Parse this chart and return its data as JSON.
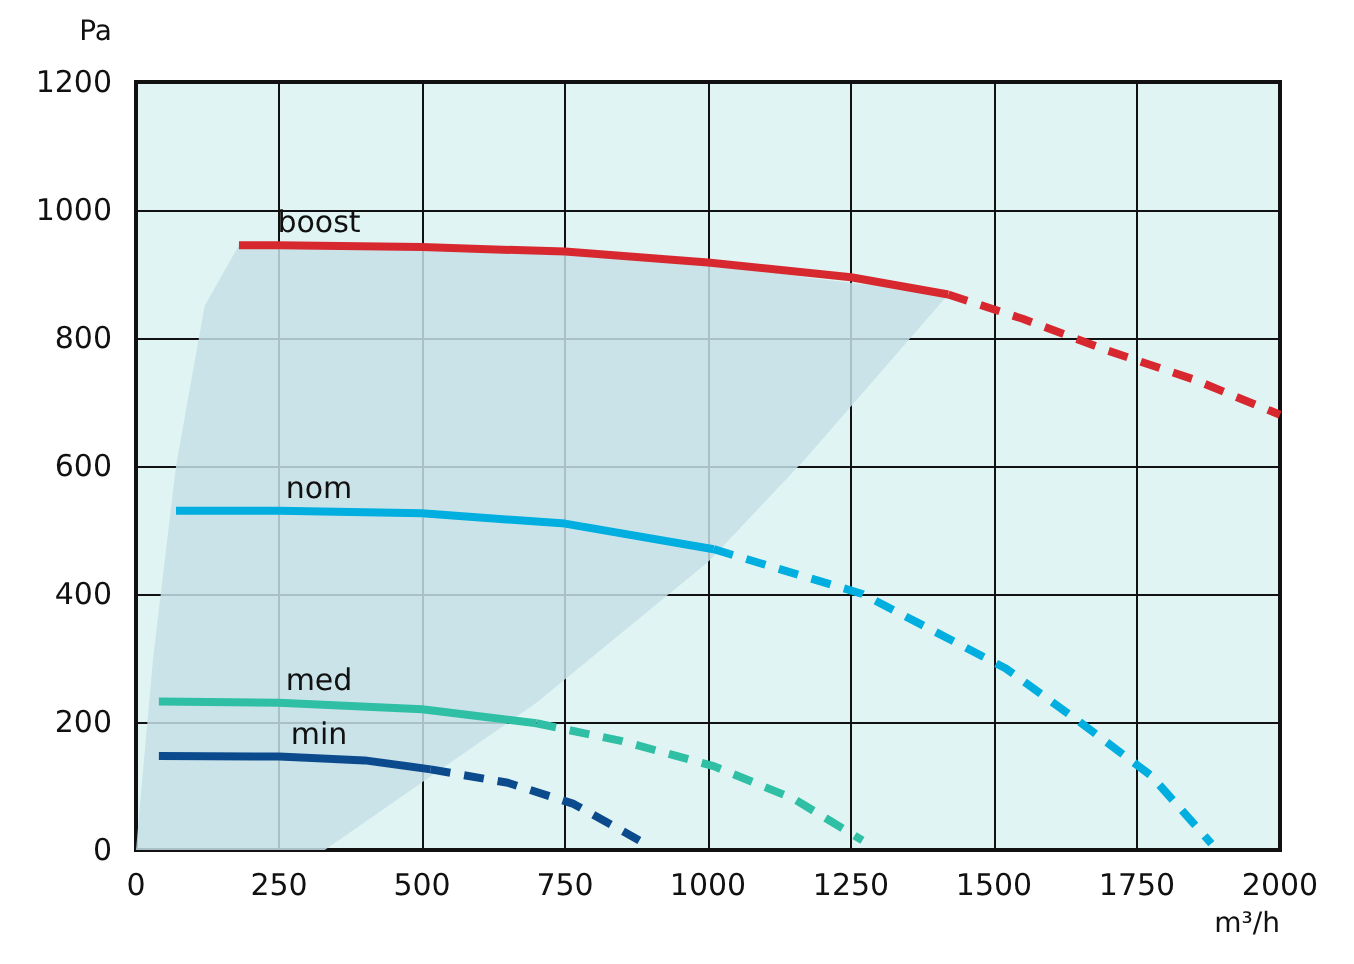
{
  "chart_data": {
    "type": "line",
    "xlabel": "m³/h",
    "ylabel": "Pa",
    "xlim": [
      0,
      2000
    ],
    "xticks": [
      0,
      250,
      500,
      750,
      1000,
      1250,
      1500,
      1750,
      2000
    ],
    "ylim": [
      0,
      1200
    ],
    "yticks": [
      0,
      200,
      400,
      600,
      800,
      1000,
      1200
    ],
    "grid": true,
    "legend": false,
    "marker": "none",
    "series": [
      {
        "name": "boost",
        "color": "#d7282f",
        "line_style": "solid",
        "x": [
          180,
          250,
          500,
          750,
          1000,
          1250,
          1420
        ],
        "values": [
          945,
          945,
          942,
          935,
          918,
          895,
          868
        ]
      },
      {
        "color": "#d7282f",
        "line_style": "dashed",
        "x": [
          1420,
          1550,
          1700,
          1850,
          2000
        ],
        "values": [
          868,
          830,
          780,
          735,
          680
        ]
      },
      {
        "name": "nom",
        "color": "#00aee0",
        "line_style": "solid",
        "x": [
          70,
          250,
          500,
          750,
          1010
        ],
        "values": [
          530,
          530,
          526,
          510,
          470
        ]
      },
      {
        "color": "#00aee0",
        "line_style": "dashed",
        "x": [
          1010,
          1270,
          1520,
          1650,
          1775,
          1880
        ],
        "values": [
          470,
          400,
          284,
          200,
          116,
          10
        ]
      },
      {
        "name": "med",
        "color": "#2ebfa5",
        "line_style": "solid",
        "x": [
          40,
          250,
          500,
          700
        ],
        "values": [
          232,
          230,
          220,
          198
        ]
      },
      {
        "color": "#2ebfa5",
        "line_style": "dashed",
        "x": [
          700,
          850,
          1010,
          1150,
          1270
        ],
        "values": [
          198,
          170,
          131,
          80,
          15
        ]
      },
      {
        "name": "min",
        "color": "#0b4a8c",
        "line_style": "solid",
        "x": [
          40,
          250,
          400,
          515
        ],
        "values": [
          147,
          146,
          140,
          126
        ]
      },
      {
        "color": "#0b4a8c",
        "line_style": "dashed",
        "x": [
          515,
          650,
          765,
          880
        ],
        "values": [
          126,
          105,
          72,
          15
        ]
      },
      {
        "type": "area",
        "color": "#c4dfe6",
        "x": [
          0,
          30,
          70,
          120,
          180,
          330,
          700,
          1000,
          1168,
          1420
        ],
        "values": [
          null,
          null,
          null,
          null,
          null,
          null,
          null,
          null,
          null,
          null
        ],
        "lower": [
          0,
          0,
          0,
          0,
          0,
          0,
          230,
          450,
          609,
          868
        ],
        "upper": [
          0,
          300,
          600,
          850,
          945,
          943,
          935,
          918,
          895,
          868
        ]
      }
    ]
  }
}
